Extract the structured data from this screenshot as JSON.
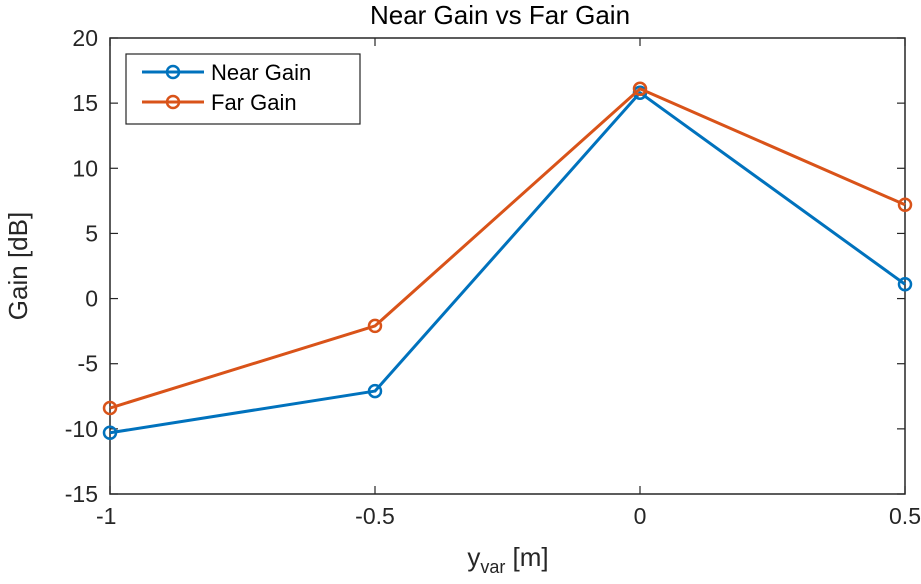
{
  "chart_data": {
    "type": "line",
    "title": "Near Gain vs Far Gain",
    "xlabel_main": "y",
    "xlabel_sub": "var",
    "xlabel_unit": " [m]",
    "ylabel": "Gain [dB]",
    "xlim": [
      -1,
      0.5
    ],
    "ylim": [
      -15,
      20
    ],
    "xticks": [
      -1,
      -0.5,
      0,
      0.5
    ],
    "xtick_labels": [
      "-1",
      "-0.5",
      "0",
      "0.5"
    ],
    "yticks": [
      -15,
      -10,
      -5,
      0,
      5,
      10,
      15,
      20
    ],
    "ytick_labels": [
      "-15",
      "-10",
      "-5",
      "0",
      "5",
      "10",
      "15",
      "20"
    ],
    "grid": false,
    "legend_position": "top-left",
    "x": [
      -1,
      -0.5,
      0,
      0.5
    ],
    "series": [
      {
        "name": "Near Gain",
        "color": "#0072BD",
        "marker": "circle",
        "values": [
          -10.3,
          -7.1,
          15.8,
          1.1
        ]
      },
      {
        "name": "Far Gain",
        "color": "#D95319",
        "marker": "circle",
        "values": [
          -8.4,
          -2.1,
          16.1,
          7.2
        ]
      }
    ]
  }
}
